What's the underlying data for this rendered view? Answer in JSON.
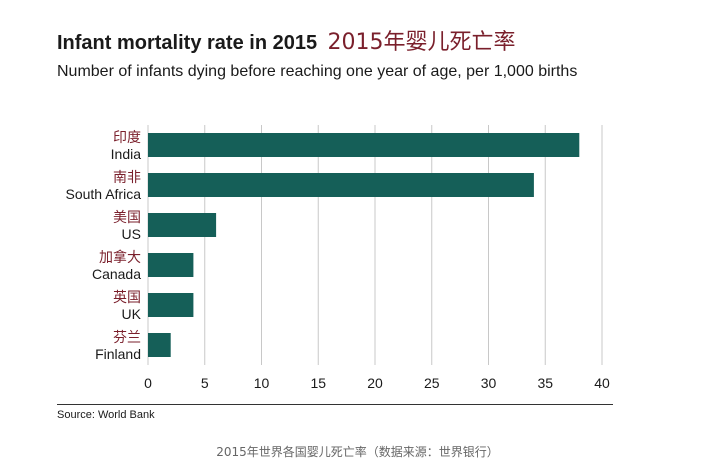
{
  "title": "Infant mortality rate in 2015",
  "title_cn": "2015年婴儿死亡率",
  "subtitle": "Number of infants dying before reaching one year of age, per 1,000 births",
  "source": "Source: World Bank",
  "caption": "2015年世界各国婴儿死亡率（数据来源：世界银行）",
  "chart_data": {
    "type": "bar",
    "orientation": "horizontal",
    "categories": [
      "India",
      "South Africa",
      "US",
      "Canada",
      "UK",
      "Finland"
    ],
    "categories_cn": [
      "印度",
      "南非",
      "美国",
      "加拿大",
      "英国",
      "芬兰"
    ],
    "values": [
      38,
      34,
      6,
      4,
      4,
      2
    ],
    "xlim": [
      0,
      40
    ],
    "xticks": [
      0,
      5,
      10,
      15,
      20,
      25,
      30,
      35,
      40
    ],
    "grid": "vertical",
    "bar_color": "#155f58",
    "label_cn_color": "#7a1f2b"
  }
}
